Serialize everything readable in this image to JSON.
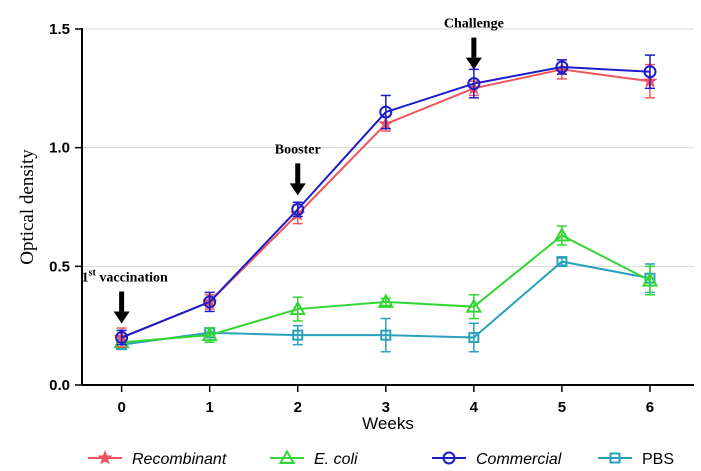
{
  "chart_data": {
    "type": "line",
    "xlabel": "Weeks",
    "ylabel": "Optical density",
    "x": [
      0,
      1,
      2,
      3,
      4,
      5,
      6
    ],
    "xlim": [
      -0.45,
      6.5
    ],
    "ylim": [
      0,
      1.5
    ],
    "x_ticks": [
      "0",
      "1",
      "2",
      "3",
      "4",
      "5",
      "6"
    ],
    "y_ticks": [
      "0.0",
      "0.5",
      "1.0",
      "1.5"
    ],
    "grid": "horizontal",
    "legend_position": "bottom",
    "series": [
      {
        "name": "Recombinant",
        "italic": true,
        "color": "#f0545c",
        "marker": "star",
        "values": [
          0.2,
          0.35,
          0.72,
          1.1,
          1.25,
          1.33,
          1.28
        ],
        "errors": [
          0.04,
          0.03,
          0.04,
          0.03,
          0.03,
          0.04,
          0.07
        ]
      },
      {
        "name": "E. coli",
        "italic": true,
        "color": "#33d633",
        "marker": "triangle",
        "values": [
          0.18,
          0.21,
          0.32,
          0.35,
          0.33,
          0.63,
          0.44
        ],
        "errors": [
          0.02,
          0.03,
          0.05,
          0.015,
          0.05,
          0.04,
          0.06
        ]
      },
      {
        "name": "Commercial",
        "italic": true,
        "color": "#1c1cc8",
        "marker": "circle",
        "values": [
          0.2,
          0.35,
          0.74,
          1.15,
          1.27,
          1.34,
          1.32
        ],
        "errors": [
          0.03,
          0.04,
          0.03,
          0.07,
          0.06,
          0.03,
          0.07
        ]
      },
      {
        "name": "PBS",
        "italic": false,
        "color": "#2aa1bb",
        "marker": "square",
        "values": [
          0.17,
          0.22,
          0.21,
          0.21,
          0.2,
          0.52,
          0.45
        ],
        "errors": [
          0.015,
          0.02,
          0.04,
          0.07,
          0.06,
          0.015,
          0.06
        ]
      }
    ],
    "annotations": [
      {
        "label": "1",
        "superscript": "st",
        "suffix": " vaccination",
        "x": 0,
        "y": 0.2
      },
      {
        "label": "Booster",
        "superscript": "",
        "suffix": "",
        "x": 2,
        "y": 0.74
      },
      {
        "label": "Challenge",
        "superscript": "",
        "suffix": "",
        "x": 4,
        "y": 1.27
      }
    ]
  }
}
